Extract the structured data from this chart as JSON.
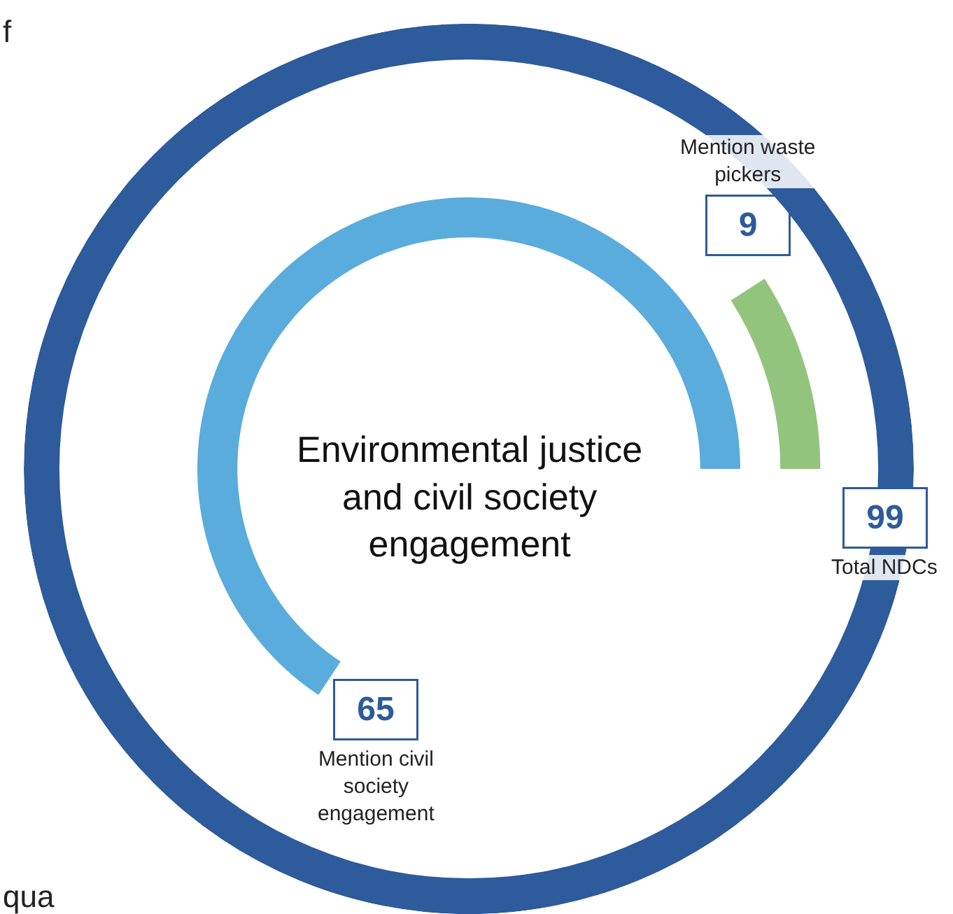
{
  "chart_data": {
    "type": "other",
    "title": "Environmental justice and civil society engagement",
    "categories": [
      "Total NDCs",
      "Mention waste pickers",
      "Mention civil society engagement"
    ],
    "values": [
      99,
      9,
      65
    ],
    "colors": [
      "#2d5b9b",
      "#93c47d",
      "#5aacdc"
    ],
    "data_labels": true,
    "annotations": [
      "f",
      "qua"
    ]
  }
}
